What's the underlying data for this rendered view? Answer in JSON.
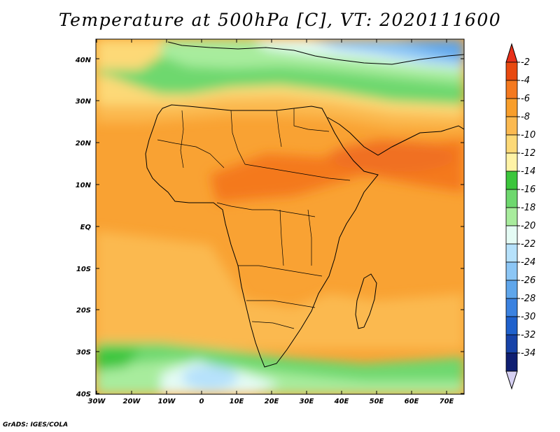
{
  "title": "Temperature at 500hPa [C], VT: 2020111600",
  "credit": "GrADS: IGES/COLA",
  "map": {
    "lat_labels": [
      "40N",
      "30N",
      "20N",
      "10N",
      "EQ",
      "10S",
      "20S",
      "30S",
      "40S"
    ],
    "lon_labels": [
      "30W",
      "20W",
      "10W",
      "0",
      "10E",
      "20E",
      "30E",
      "40E",
      "50E",
      "60E",
      "70E"
    ],
    "lat_range": [
      -40,
      45
    ],
    "lon_range": [
      -30,
      75
    ]
  },
  "colorbar": {
    "labels": [
      "-2",
      "-4",
      "-6",
      "-8",
      "-10",
      "-12",
      "-14",
      "-16",
      "-18",
      "-20",
      "-22",
      "-24",
      "-26",
      "-28",
      "-30",
      "-32",
      "-34"
    ],
    "colors": [
      "#e8490f",
      "#f4791f",
      "#f89e2b",
      "#fbb950",
      "#fdd977",
      "#fff3a6",
      "#3cc63c",
      "#6ed86e",
      "#a8ec9d",
      "#e4fbf4",
      "#b6e1fb",
      "#8cc6f5",
      "#5fa6eb",
      "#3b82e0",
      "#1f61cc",
      "#1743a8",
      "#0f1f72"
    ],
    "top_arrow_color": "#e8301a",
    "bottom_arrow_color": "#d6d0f2"
  }
}
